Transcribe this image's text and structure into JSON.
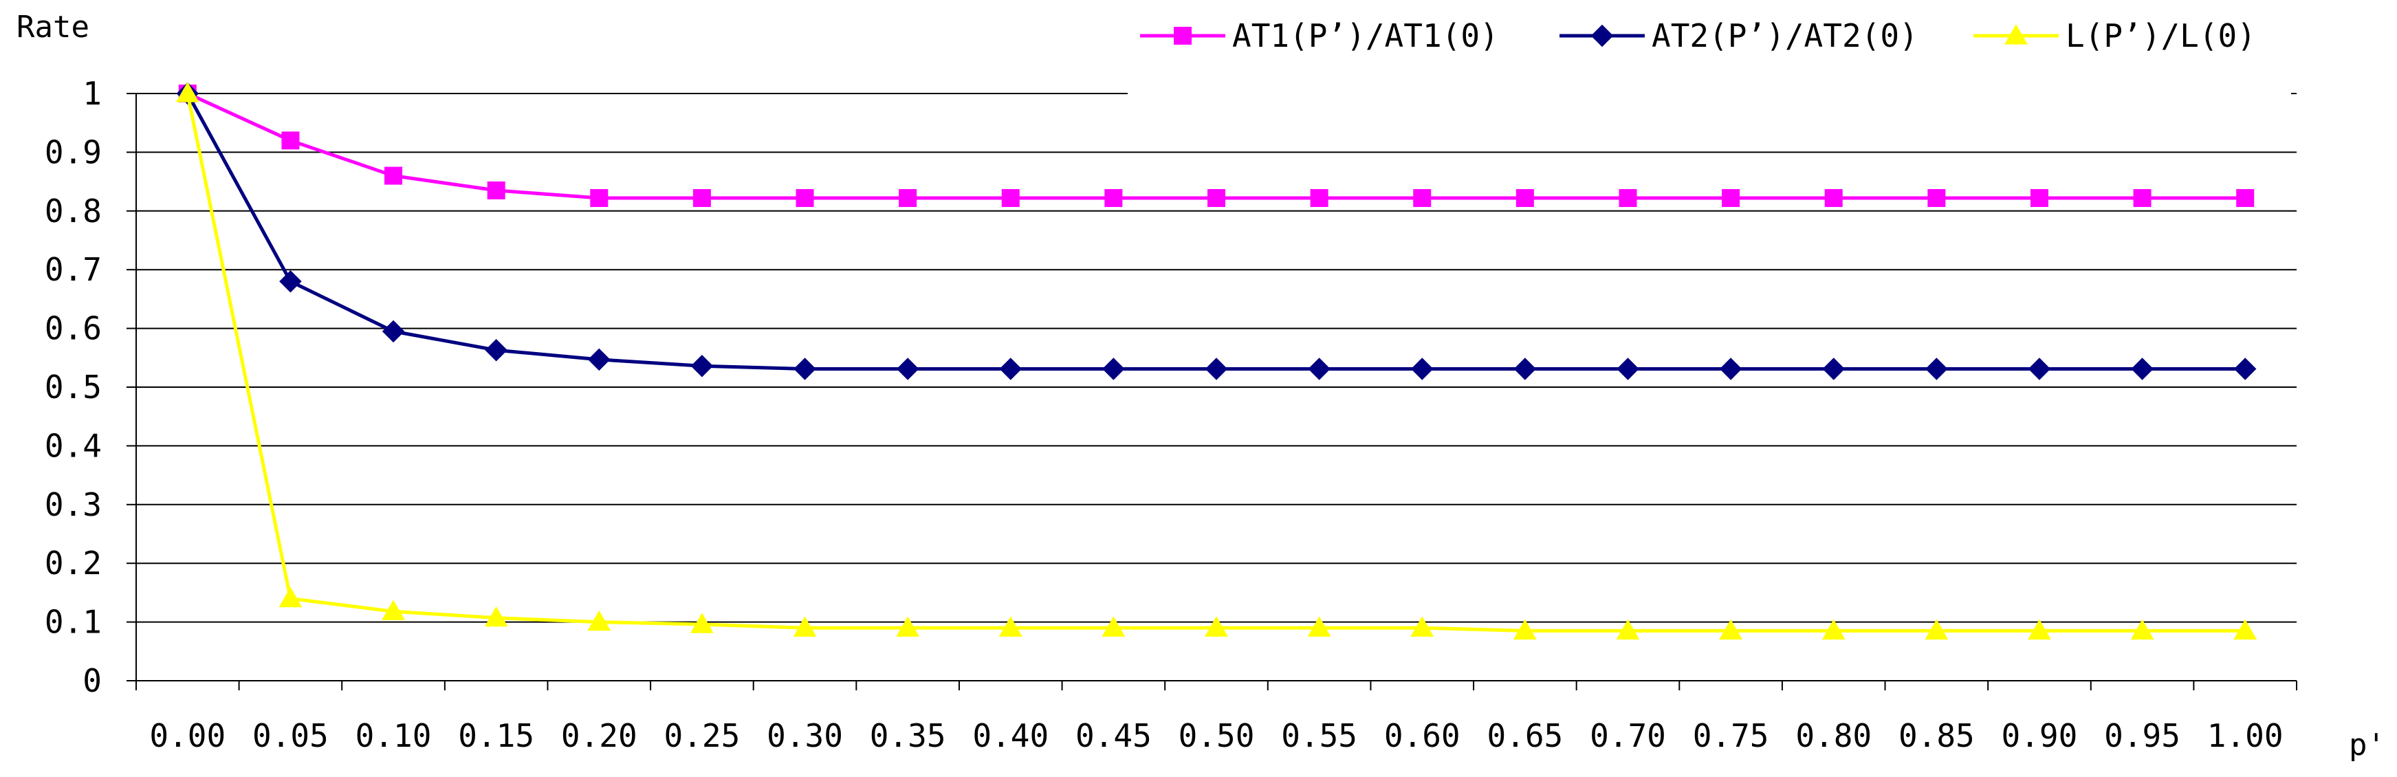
{
  "chart_data": {
    "type": "line",
    "title": "",
    "xlabel": "p'",
    "ylabel": "Rate",
    "categories": [
      "0.00",
      "0.05",
      "0.10",
      "0.15",
      "0.20",
      "0.25",
      "0.30",
      "0.35",
      "0.40",
      "0.45",
      "0.50",
      "0.55",
      "0.60",
      "0.65",
      "0.70",
      "0.75",
      "0.80",
      "0.85",
      "0.90",
      "0.95",
      "1.00"
    ],
    "ylim": [
      0,
      1
    ],
    "yticks": [
      0,
      0.1,
      0.2,
      0.3,
      0.4,
      0.5,
      0.6,
      0.7,
      0.8,
      0.9,
      1
    ],
    "ytick_labels": [
      "0",
      "0.1",
      "0.2",
      "0.3",
      "0.4",
      "0.5",
      "0.6",
      "0.7",
      "0.8",
      "0.9",
      "1"
    ],
    "grid": "horizontal",
    "legend_position": "top-right",
    "series": [
      {
        "name": "AT1(P’)/AT1(0)",
        "color": "#ff00ff",
        "marker": "square",
        "values": [
          1.0,
          0.92,
          0.86,
          0.835,
          0.822,
          0.822,
          0.822,
          0.822,
          0.822,
          0.822,
          0.822,
          0.822,
          0.822,
          0.822,
          0.822,
          0.822,
          0.822,
          0.822,
          0.822,
          0.822,
          0.822
        ]
      },
      {
        "name": "AT2(P’)/AT2(0)",
        "color": "#000080",
        "marker": "diamond",
        "values": [
          1.0,
          0.68,
          0.595,
          0.563,
          0.547,
          0.536,
          0.531,
          0.531,
          0.531,
          0.531,
          0.531,
          0.531,
          0.531,
          0.531,
          0.531,
          0.531,
          0.531,
          0.531,
          0.531,
          0.531,
          0.531
        ]
      },
      {
        "name": "L(P’)/L(0)",
        "color": "#ffff00",
        "marker": "triangle",
        "values": [
          1.0,
          0.14,
          0.118,
          0.107,
          0.1,
          0.096,
          0.09,
          0.09,
          0.09,
          0.09,
          0.09,
          0.09,
          0.09,
          0.085,
          0.085,
          0.085,
          0.085,
          0.085,
          0.085,
          0.085,
          0.085
        ]
      }
    ]
  }
}
